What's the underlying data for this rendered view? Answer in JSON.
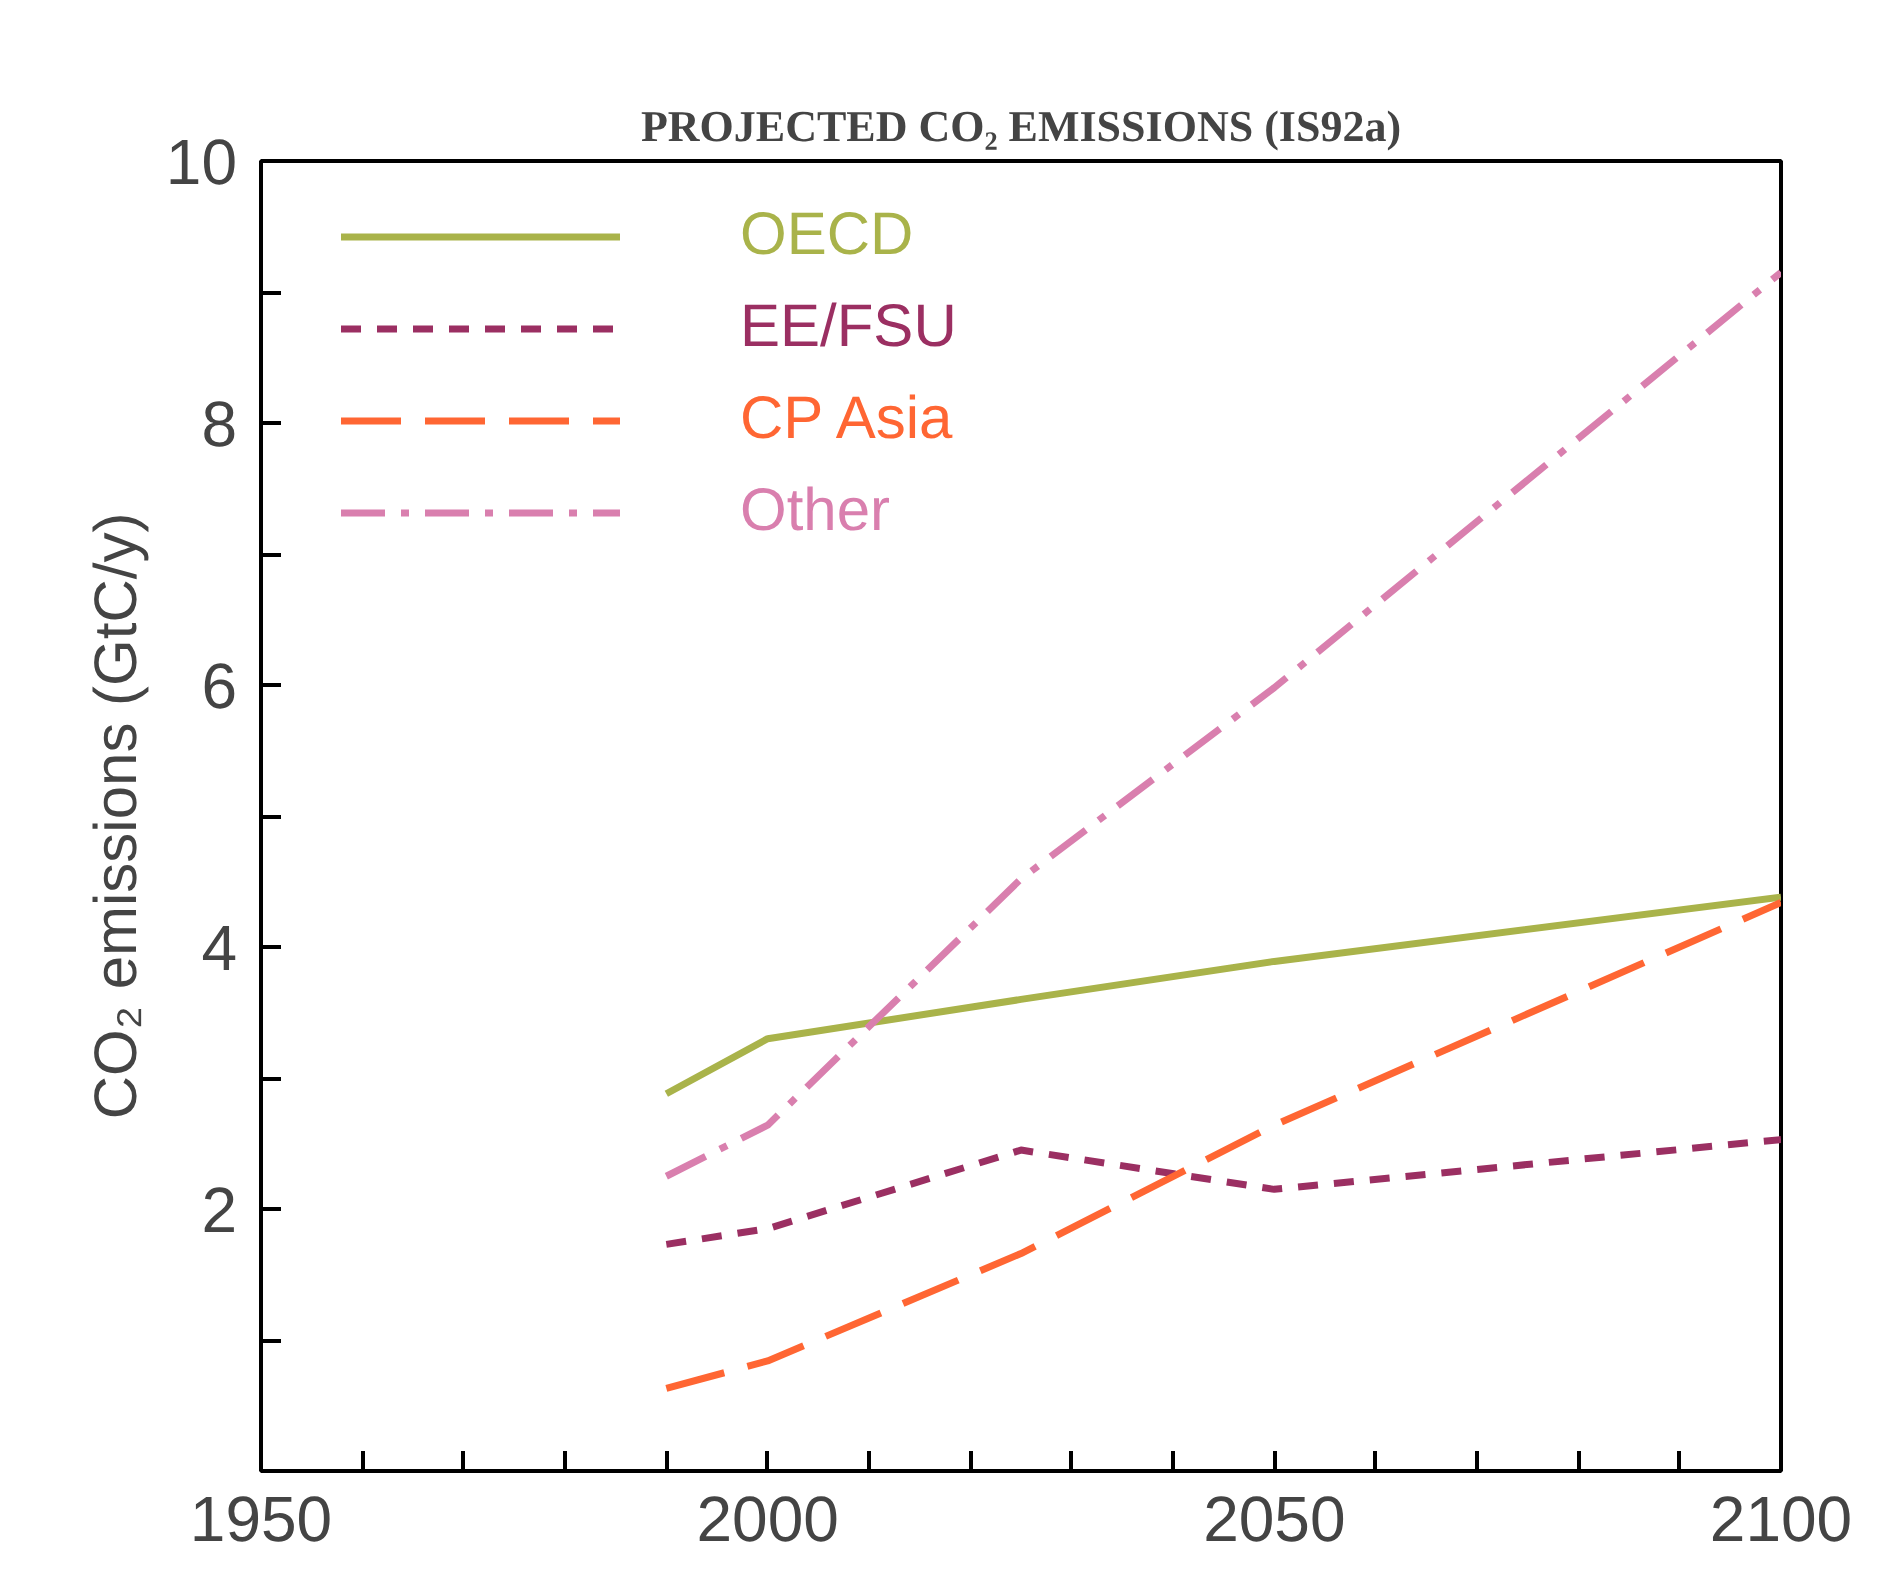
{
  "chart_data": {
    "type": "line",
    "title": "PROJECTED CO₂ EMISSIONS (IS92a)",
    "ylabel": "CO₂ emissions (GtC/y)",
    "x": [
      1990,
      2000,
      2025,
      2050,
      2100
    ],
    "series": [
      {
        "name": "OECD",
        "color": "#a9b34a",
        "line_style": "solid",
        "values": [
          2.88,
          3.3,
          3.6,
          3.89,
          4.38
        ]
      },
      {
        "name": "EE/FSU",
        "color": "#9b2f62",
        "line_style": "dashed",
        "values": [
          1.73,
          1.85,
          2.45,
          2.15,
          2.53
        ]
      },
      {
        "name": "CP Asia",
        "color": "#ff6633",
        "line_style": "longdashed",
        "values": [
          0.63,
          0.84,
          1.66,
          2.64,
          4.34
        ]
      },
      {
        "name": "Other",
        "color": "#d97fae",
        "line_style": "dashdot",
        "values": [
          2.25,
          2.64,
          4.52,
          5.98,
          9.15
        ]
      }
    ],
    "xlim": [
      1950,
      2100
    ],
    "ylim": [
      0,
      10
    ],
    "xticks": [
      1950,
      {
        "value": 1960,
        "label": null
      },
      {
        "value": 1970,
        "label": null
      },
      {
        "value": 1980,
        "label": null
      },
      {
        "value": 1990,
        "label": null
      },
      2000,
      {
        "value": 2010,
        "label": null
      },
      {
        "value": 2020,
        "label": null
      },
      {
        "value": 2030,
        "label": null
      },
      {
        "value": 2040,
        "label": null
      },
      2050,
      {
        "value": 2060,
        "label": null
      },
      {
        "value": 2070,
        "label": null
      },
      {
        "value": 2080,
        "label": null
      },
      {
        "value": 2090,
        "label": null
      },
      2100
    ],
    "yticks": [
      {
        "value": 1,
        "label": null
      },
      2,
      {
        "value": 3,
        "label": null
      },
      4,
      {
        "value": 5,
        "label": null
      },
      6,
      {
        "value": 7,
        "label": null
      },
      8,
      {
        "value": 9,
        "label": null
      },
      10
    ],
    "grid": false,
    "legend": "top left",
    "marker": "none"
  }
}
